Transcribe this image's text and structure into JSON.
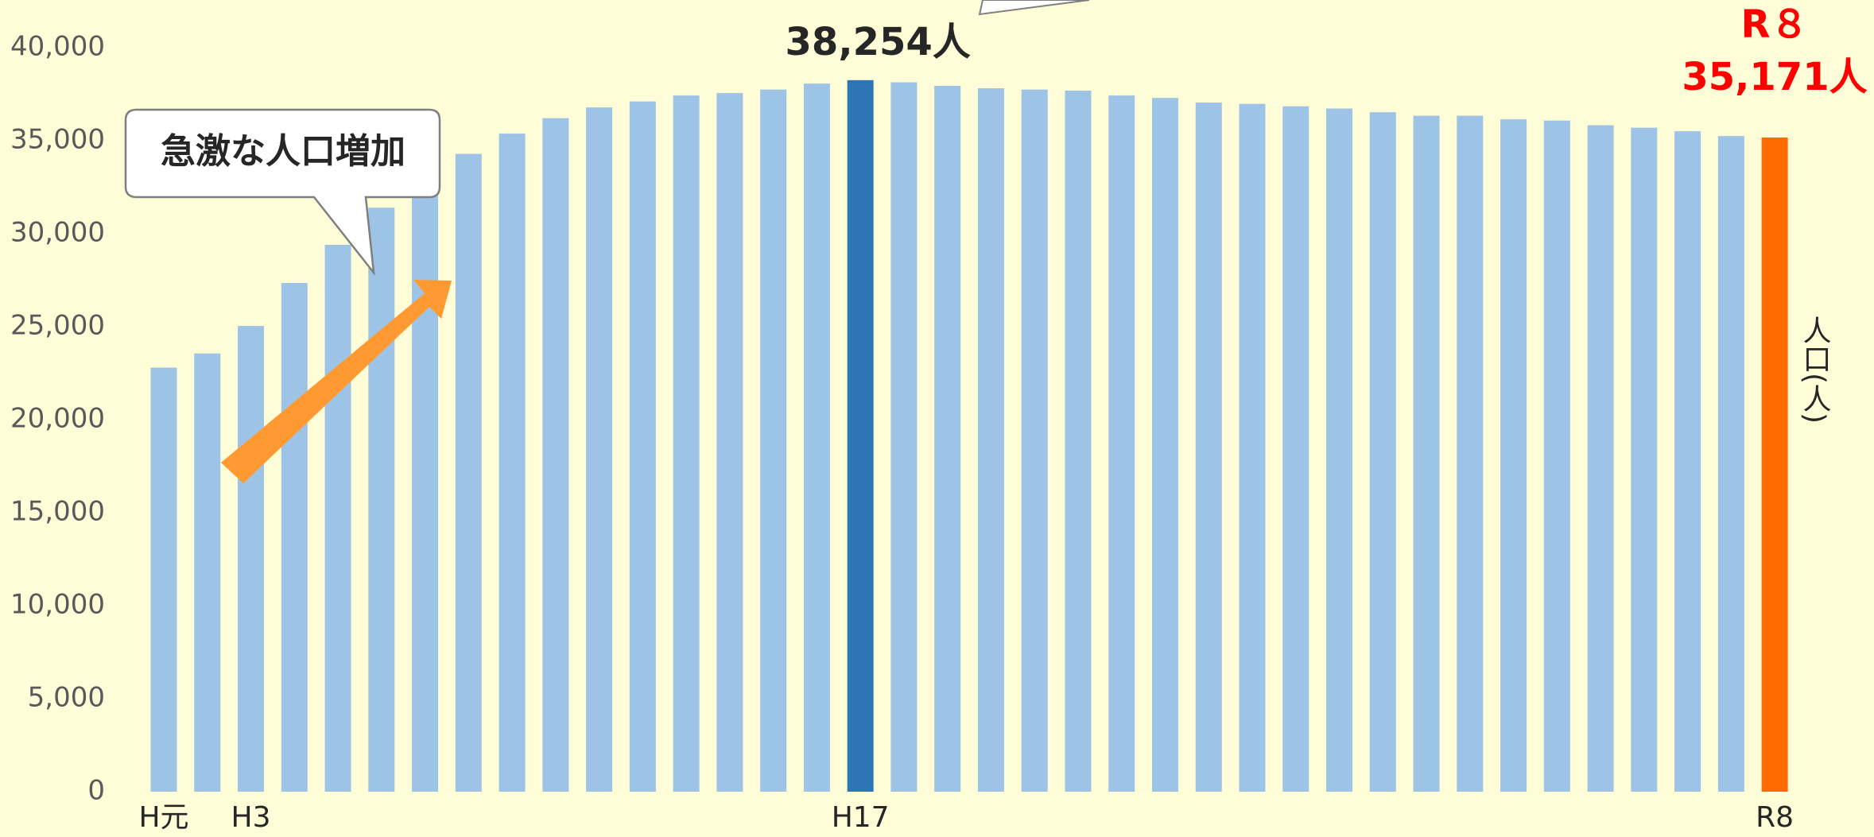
{
  "chart_data": {
    "type": "bar",
    "categories": [
      "H元",
      null,
      "H3",
      null,
      null,
      null,
      null,
      null,
      null,
      null,
      null,
      null,
      null,
      null,
      null,
      null,
      "H17",
      null,
      null,
      null,
      null,
      null,
      null,
      null,
      null,
      null,
      null,
      null,
      null,
      null,
      null,
      null,
      null,
      null,
      null,
      null,
      null,
      "R8"
    ],
    "values": [
      22800,
      23560,
      25040,
      27350,
      29400,
      31400,
      33000,
      34290,
      35380,
      36210,
      36790,
      37110,
      37430,
      37560,
      37750,
      38070,
      38254,
      38140,
      37950,
      37820,
      37750,
      37690,
      37430,
      37300,
      37050,
      36980,
      36850,
      36730,
      36530,
      36340,
      36340,
      36150,
      36080,
      35830,
      35700,
      35510,
      35250,
      35171
    ],
    "value_labels": [
      null,
      null,
      null,
      null,
      null,
      null,
      null,
      null,
      null,
      null,
      null,
      null,
      null,
      null,
      null,
      null,
      "38,254人",
      null,
      null,
      null,
      null,
      null,
      null,
      null,
      null,
      null,
      null,
      null,
      null,
      null,
      null,
      null,
      null,
      null,
      null,
      null,
      null,
      "35,171人"
    ],
    "colors": [
      "#9dc3e6",
      "#9dc3e6",
      "#9dc3e6",
      "#9dc3e6",
      "#9dc3e6",
      "#9dc3e6",
      "#9dc3e6",
      "#9dc3e6",
      "#9dc3e6",
      "#9dc3e6",
      "#9dc3e6",
      "#9dc3e6",
      "#9dc3e6",
      "#9dc3e6",
      "#9dc3e6",
      "#9dc3e6",
      "#2e75b6",
      "#9dc3e6",
      "#9dc3e6",
      "#9dc3e6",
      "#9dc3e6",
      "#9dc3e6",
      "#9dc3e6",
      "#9dc3e6",
      "#9dc3e6",
      "#9dc3e6",
      "#9dc3e6",
      "#9dc3e6",
      "#9dc3e6",
      "#9dc3e6",
      "#9dc3e6",
      "#9dc3e6",
      "#9dc3e6",
      "#9dc3e6",
      "#9dc3e6",
      "#9dc3e6",
      "#9dc3e6",
      "#ff6a00"
    ],
    "ylim": [
      0,
      40000
    ],
    "yticks": [
      0,
      {
        "value": 5000,
        "label": "5,000"
      },
      {
        "value": 10000,
        "label": "10,000"
      },
      {
        "value": 15000,
        "label": "15,000"
      },
      {
        "value": 20000,
        "label": "20,000"
      },
      {
        "value": 25000,
        "label": "25,000"
      },
      {
        "value": 30000,
        "label": "30,000"
      },
      {
        "value": 35000,
        "label": "35,000"
      },
      {
        "value": 40000,
        "label": "40,000"
      }
    ],
    "ylabel": "人口(人)",
    "callout": "急激な人口増加",
    "last_label": "R８",
    "grid": false
  }
}
